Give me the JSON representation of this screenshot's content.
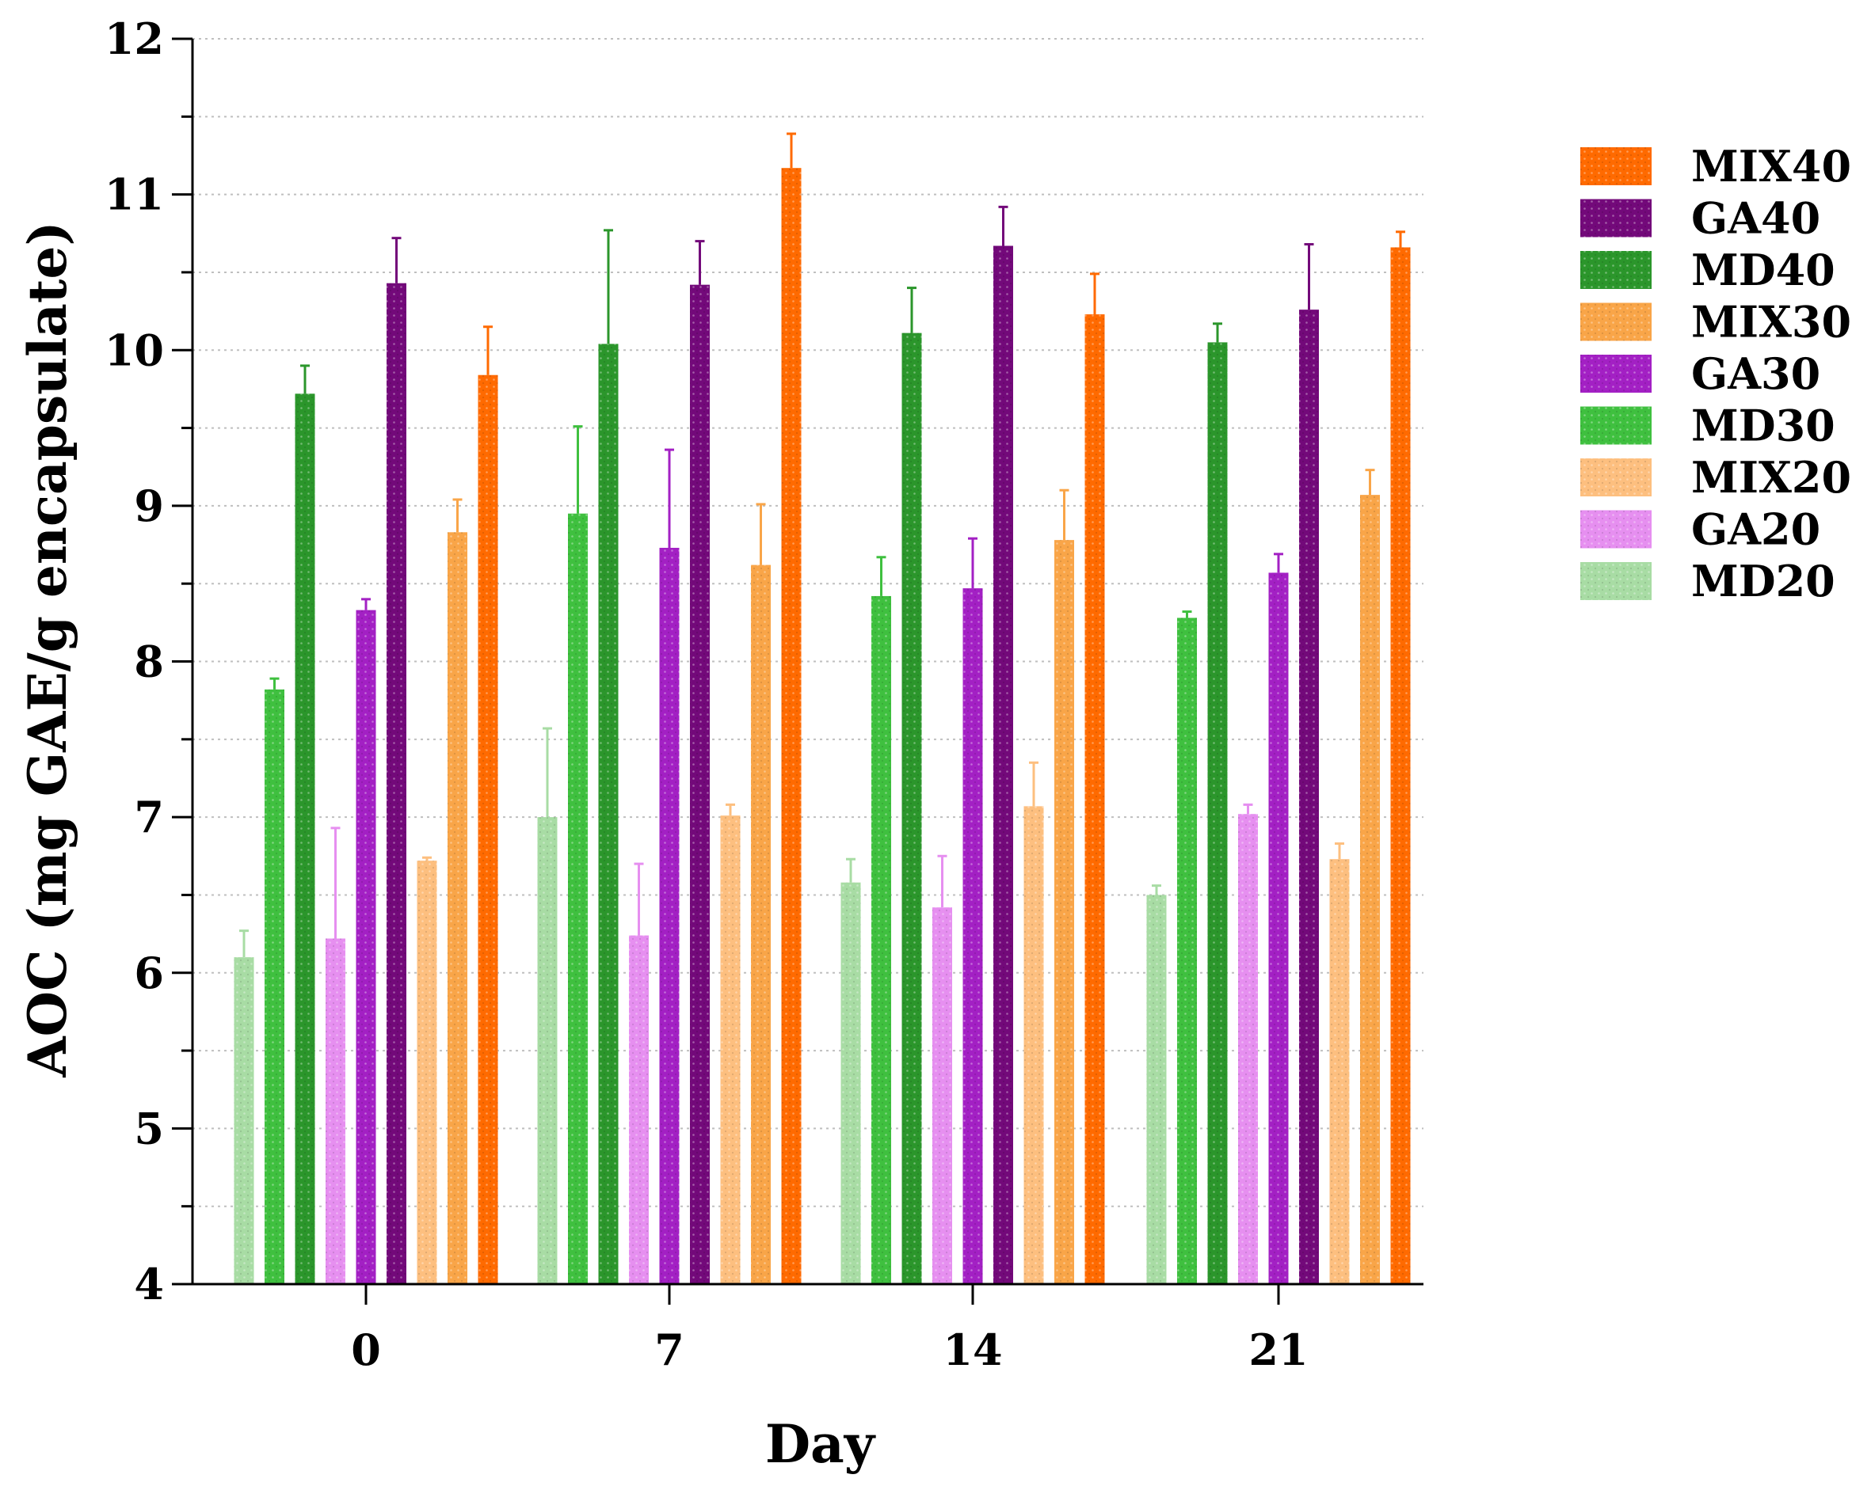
{
  "chart_data": {
    "type": "bar",
    "title": "",
    "xlabel": "Day",
    "ylabel": "AOC (mg GAE/g encapsulate)",
    "ylim": [
      4,
      12
    ],
    "yticks": [
      4,
      5,
      6,
      7,
      8,
      9,
      10,
      11,
      12
    ],
    "grid": "horizontal dotted",
    "legend_position": "top-right",
    "categories": [
      "0",
      "7",
      "14",
      "21"
    ],
    "series": [
      {
        "name": "MD20",
        "color": "#a8dca4",
        "values": [
          6.1,
          7.0,
          6.58,
          6.5
        ],
        "errors": [
          0.17,
          0.57,
          0.15,
          0.06
        ]
      },
      {
        "name": "MD30",
        "color": "#3fc03f",
        "values": [
          7.82,
          8.95,
          8.42,
          8.28
        ],
        "errors": [
          0.07,
          0.56,
          0.25,
          0.04
        ]
      },
      {
        "name": "MD40",
        "color": "#2b962b",
        "values": [
          9.72,
          10.04,
          10.11,
          10.05
        ],
        "errors": [
          0.18,
          0.73,
          0.29,
          0.12
        ]
      },
      {
        "name": "GA20",
        "color": "#e68ff0",
        "values": [
          6.22,
          6.24,
          6.42,
          7.02
        ],
        "errors": [
          0.71,
          0.46,
          0.33,
          0.06
        ]
      },
      {
        "name": "GA30",
        "color": "#a320c4",
        "values": [
          8.33,
          8.73,
          8.47,
          8.57
        ],
        "errors": [
          0.07,
          0.63,
          0.32,
          0.12
        ]
      },
      {
        "name": "GA40",
        "color": "#73097a",
        "values": [
          10.43,
          10.42,
          10.67,
          10.26
        ],
        "errors": [
          0.29,
          0.28,
          0.25,
          0.42
        ]
      },
      {
        "name": "MIX20",
        "color": "#fdbf7f",
        "values": [
          6.72,
          7.01,
          7.07,
          6.73
        ],
        "errors": [
          0.02,
          0.07,
          0.28,
          0.1
        ]
      },
      {
        "name": "MIX30",
        "color": "#f9a548",
        "values": [
          8.83,
          8.62,
          8.78,
          9.07
        ],
        "errors": [
          0.21,
          0.39,
          0.32,
          0.16
        ]
      },
      {
        "name": "MIX40",
        "color": "#ff6a00",
        "values": [
          9.84,
          11.17,
          10.23,
          10.66
        ],
        "errors": [
          0.31,
          0.22,
          0.26,
          0.1
        ]
      }
    ],
    "legend_order": [
      "MIX40",
      "GA40",
      "MD40",
      "MIX30",
      "GA30",
      "MD30",
      "MIX20",
      "GA20",
      "MD20"
    ]
  }
}
